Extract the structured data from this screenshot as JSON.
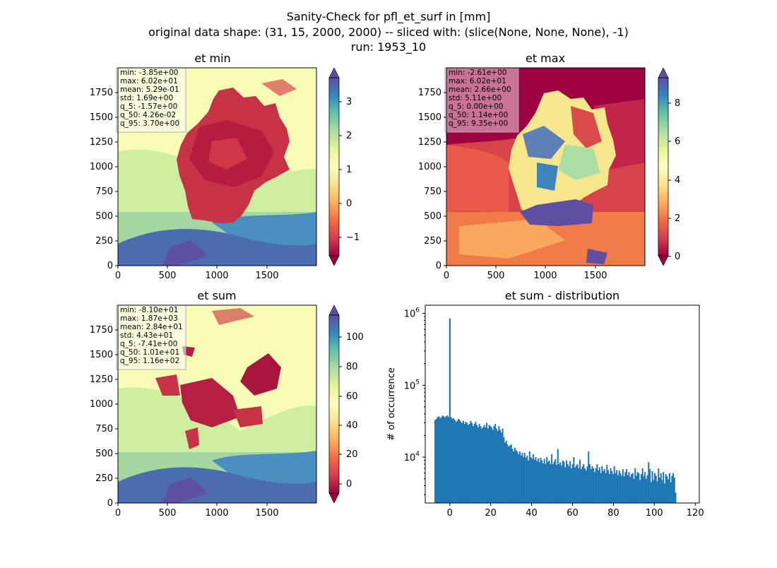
{
  "figure": {
    "title_lines": [
      "Sanity-Check for pfl_et_surf in [mm]",
      "original data shape: (31, 15, 2000, 2000) -- sliced with: (slice(None, None, None), -1)",
      "run: 1953_10"
    ]
  },
  "panels": [
    {
      "title": "et min",
      "stats": [
        "min: -3.85e+00",
        "max: 6.02e+01",
        "mean: 5.29e-01",
        "std: 1.69e+00",
        "q_5: -1.57e+00",
        "q_50: 4.26e-02",
        "q_95: 3.70e+00"
      ],
      "colorbar_ticks": [
        "3",
        "2",
        "1",
        "0",
        "−1"
      ],
      "x_ticks": [
        "0",
        "500",
        "1000",
        "1500"
      ],
      "y_ticks": [
        "1750",
        "1500",
        "1250",
        "1000",
        "750",
        "500",
        "250",
        "0"
      ]
    },
    {
      "title": "et max",
      "stats": [
        "min: -2.61e+00",
        "max: 6.02e+01",
        "mean: 2.66e+00",
        "std: 5.11e+00",
        "q_5: 0.00e+00",
        "q_50: 1.14e+00",
        "q_95: 9.35e+00"
      ],
      "colorbar_ticks": [
        "8",
        "6",
        "4",
        "2",
        "0"
      ],
      "x_ticks": [
        "0",
        "500",
        "1000",
        "1500"
      ],
      "y_ticks": [
        "1750",
        "1500",
        "1250",
        "1000",
        "750",
        "500",
        "250",
        "0"
      ]
    },
    {
      "title": "et sum",
      "stats": [
        "min: -8.10e+01",
        "max: 1.87e+03",
        "mean: 2.84e+01",
        "std: 4.43e+01",
        "q_5: -7.41e+00",
        "q_50: 1.01e+01",
        "q_95: 1.16e+02"
      ],
      "colorbar_ticks": [
        "100",
        "80",
        "60",
        "40",
        "20",
        "0"
      ],
      "x_ticks": [
        "0",
        "500",
        "1000",
        "1500"
      ],
      "y_ticks": [
        "1750",
        "1500",
        "1250",
        "1000",
        "750",
        "500",
        "250",
        "0"
      ]
    }
  ],
  "colors": {
    "dark_red": "#9e0142",
    "red": "#d53e4f",
    "orange": "#f46d43",
    "light_orange": "#fdae61",
    "yellow": "#fee08b",
    "pale_yellow": "#ffffbf",
    "pale_green": "#e6f598",
    "green": "#abdda4",
    "teal": "#66c2a5",
    "blue": "#3288bd",
    "purple": "#5e4fa2",
    "bar": "#1f77b4"
  },
  "chart_data": {
    "type": "bar",
    "title": "et sum - distribution",
    "xlabel": "",
    "ylabel": "# of occurrence",
    "y_scale": "log",
    "xlim": [
      -12,
      122
    ],
    "ylim": [
      2300,
      1300000
    ],
    "x_tick_labels": [
      "0",
      "20",
      "40",
      "60",
      "80",
      "100",
      "120"
    ],
    "y_tick_labels": [
      "10^4",
      "10^5",
      "10^6"
    ],
    "bin_start": -7.5,
    "bin_width": 0.6,
    "spike": {
      "x": 0,
      "count": 850000
    },
    "counts": [
      33000,
      34000,
      36000,
      37000,
      35000,
      36000,
      38000,
      37000,
      36000,
      37000,
      38000,
      36000,
      35000,
      36000,
      34000,
      35000,
      33000,
      31000,
      32000,
      34000,
      33000,
      31000,
      30000,
      32000,
      29000,
      31000,
      30000,
      28000,
      29000,
      32000,
      30000,
      27000,
      29000,
      31000,
      28000,
      26000,
      29000,
      27000,
      25000,
      26000,
      28000,
      26000,
      30000,
      25000,
      28000,
      27000,
      26000,
      24000,
      27000,
      29000,
      25000,
      23000,
      27000,
      24000,
      22000,
      25000,
      19000,
      16000,
      17000,
      15000,
      14000,
      14500,
      15000,
      13000,
      12000,
      13500,
      12500,
      12000,
      11000,
      12000,
      10500,
      11500,
      10000,
      11500,
      9800,
      10500,
      9000,
      12000,
      10000,
      9500,
      11000,
      9200,
      10000,
      8800,
      9600,
      8500,
      9800,
      9000,
      8200,
      9500,
      8000,
      10000,
      8600,
      9000,
      8000,
      11000,
      8000,
      8700,
      9400,
      7800,
      13000,
      8000,
      8500,
      7600,
      9000,
      8600,
      7200,
      9000,
      8000,
      7500,
      8800,
      7000,
      8000,
      10000,
      7200,
      7600,
      8000,
      7000,
      9200,
      6800,
      7400,
      8000,
      7000,
      6500,
      7400,
      12000,
      8000,
      6800,
      7500,
      7000,
      6200,
      7000,
      8000,
      6500,
      7200,
      6000,
      7500,
      6400,
      6800,
      6000,
      7800,
      6600,
      5800,
      7000,
      6400,
      5800,
      7500,
      6000,
      6600,
      5600,
      6500,
      6000,
      5500,
      6800,
      5400,
      6200,
      6800,
      5600,
      6200,
      5300,
      5800,
      6000,
      5000,
      7000,
      5500,
      6200,
      6000,
      4800,
      5800,
      7000,
      5400,
      6200,
      5000,
      5600,
      8500,
      6800,
      4500,
      6400,
      4800,
      6000,
      5500,
      4600,
      7000,
      5200,
      6000,
      4800,
      6200,
      4300,
      5800,
      5400,
      4900,
      6000,
      4500,
      5500,
      6000,
      5200,
      3200
    ]
  }
}
